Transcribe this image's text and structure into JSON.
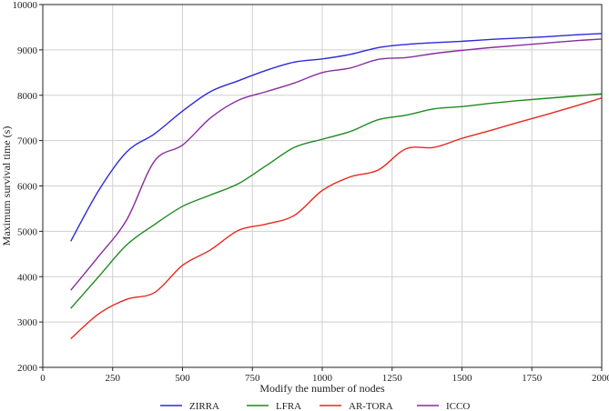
{
  "chart_data": {
    "type": "line",
    "title": "",
    "xlabel": "Modify the number of nodes",
    "ylabel": "Maximum survival time (s)",
    "xlim": [
      0,
      2000
    ],
    "ylim": [
      2000,
      10000
    ],
    "xticks": [
      0,
      250,
      500,
      750,
      1000,
      1250,
      1500,
      1750,
      2000
    ],
    "yticks": [
      2000,
      3000,
      4000,
      5000,
      6000,
      7000,
      8000,
      9000,
      10000
    ],
    "grid": true,
    "legend_position": "bottom-center",
    "x": [
      100,
      200,
      300,
      400,
      500,
      600,
      700,
      800,
      900,
      1000,
      1100,
      1200,
      1300,
      1400,
      1500,
      1600,
      1700,
      1800,
      1900,
      2000
    ],
    "series": [
      {
        "name": "ZIRRA",
        "color": "#2b2bd6",
        "values": [
          4780,
          5900,
          6750,
          7150,
          7650,
          8080,
          8320,
          8550,
          8730,
          8800,
          8900,
          9050,
          9120,
          9160,
          9190,
          9230,
          9260,
          9290,
          9330,
          9360
        ]
      },
      {
        "name": "LFRA",
        "color": "#1f8a1f",
        "values": [
          3300,
          4000,
          4700,
          5150,
          5550,
          5800,
          6050,
          6450,
          6850,
          7030,
          7200,
          7460,
          7560,
          7700,
          7750,
          7820,
          7880,
          7930,
          7980,
          8030
        ]
      },
      {
        "name": "AR-TORA",
        "color": "#e8281f",
        "values": [
          2630,
          3180,
          3500,
          3650,
          4250,
          4590,
          5020,
          5160,
          5350,
          5900,
          6200,
          6350,
          6820,
          6850,
          7050,
          7220,
          7400,
          7570,
          7750,
          7940
        ]
      },
      {
        "name": "ICCO",
        "color": "#8a2c9e",
        "values": [
          3700,
          4450,
          5250,
          6550,
          6900,
          7500,
          7890,
          8080,
          8270,
          8500,
          8600,
          8790,
          8830,
          8920,
          8990,
          9050,
          9100,
          9150,
          9200,
          9240
        ]
      }
    ]
  }
}
